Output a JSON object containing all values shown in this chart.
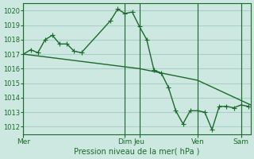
{
  "bg_color": "#cce8e0",
  "grid_color": "#a8cfc8",
  "line_color": "#1a6b2a",
  "xlabel": "Pression niveau de la mer( hPa )",
  "ylim": [
    1011.5,
    1020.5
  ],
  "yticks": [
    1012,
    1013,
    1014,
    1015,
    1016,
    1017,
    1018,
    1019,
    1020
  ],
  "x_day_labels": [
    "Mer",
    "Dim",
    "Jeu",
    "Ven",
    "Sam"
  ],
  "x_day_positions": [
    0,
    84,
    96,
    144,
    180
  ],
  "xlim": [
    0,
    188
  ],
  "series1_x": [
    0,
    6,
    12,
    18,
    24,
    30,
    36,
    42,
    48,
    72,
    78,
    84,
    90,
    96,
    102,
    108,
    114,
    120,
    126,
    132,
    138,
    144,
    150,
    156,
    162,
    168,
    174,
    180,
    186
  ],
  "series1_y": [
    1017.0,
    1017.3,
    1017.1,
    1018.0,
    1018.3,
    1017.7,
    1017.7,
    1017.2,
    1017.1,
    1019.3,
    1020.1,
    1019.8,
    1019.9,
    1018.9,
    1018.0,
    1015.9,
    1015.7,
    1014.7,
    1013.1,
    1012.2,
    1013.1,
    1013.1,
    1013.0,
    1011.8,
    1013.4,
    1013.4,
    1013.3,
    1013.5,
    1013.4
  ],
  "series2_x": [
    0,
    96,
    144,
    188
  ],
  "series2_y": [
    1017.0,
    1016.0,
    1015.2,
    1013.5
  ],
  "vline_positions": [
    0,
    84,
    96,
    144,
    180
  ]
}
